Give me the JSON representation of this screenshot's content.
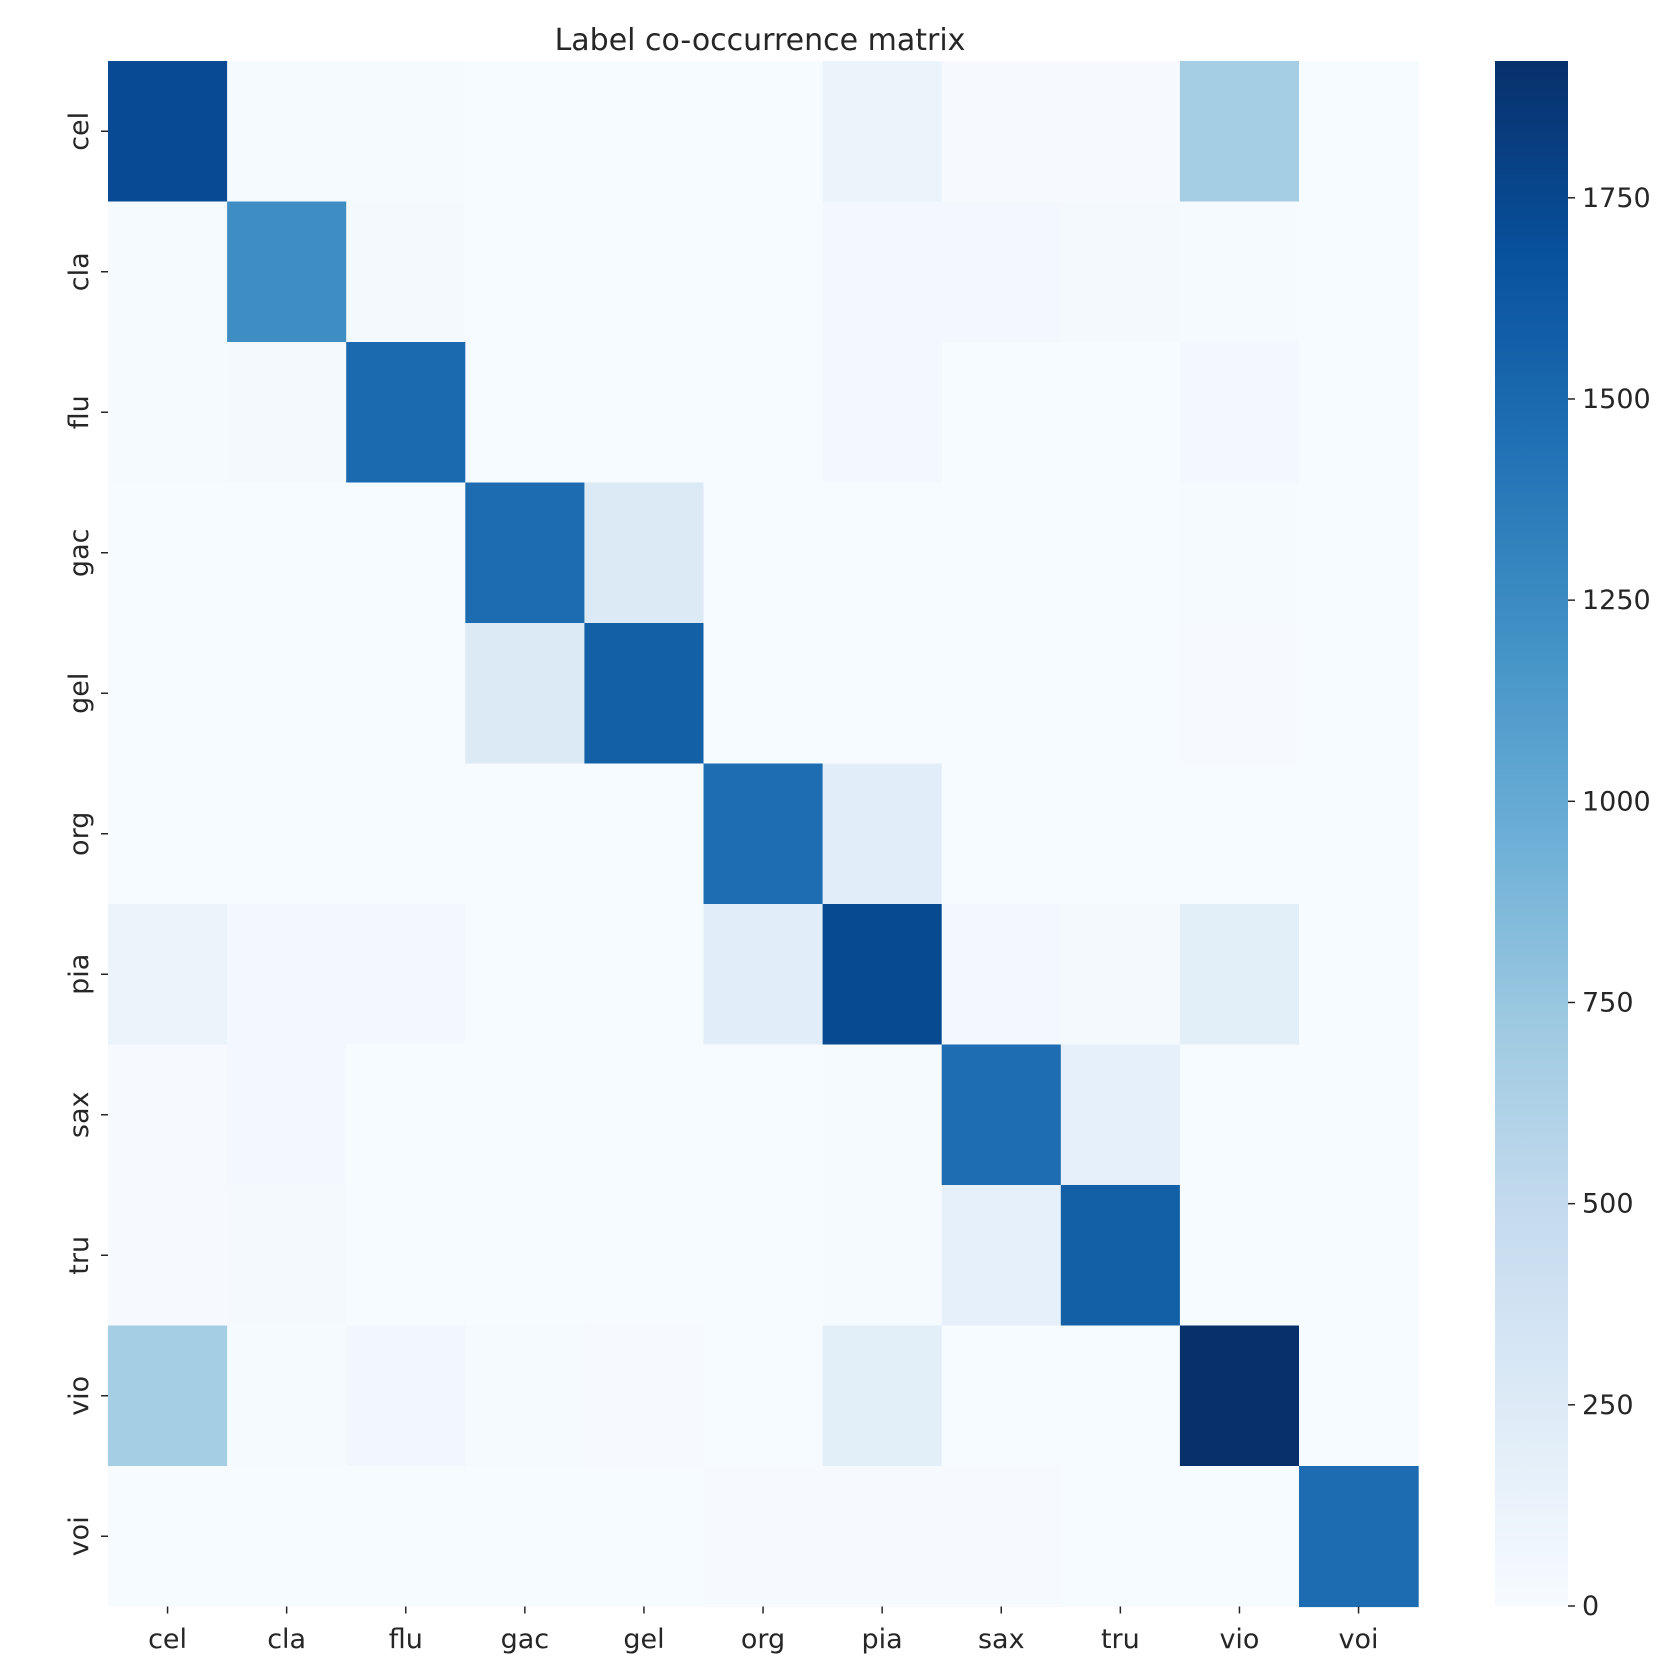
{
  "chart_data": {
    "type": "heatmap",
    "title": "Label co-occurrence matrix",
    "xlabel": "",
    "ylabel": "",
    "x_categories": [
      "cel",
      "cla",
      "flu",
      "gac",
      "gel",
      "org",
      "pia",
      "sax",
      "tru",
      "vio",
      "voi"
    ],
    "y_categories": [
      "cel",
      "cla",
      "flu",
      "gac",
      "gel",
      "org",
      "pia",
      "sax",
      "tru",
      "vio",
      "voi"
    ],
    "values": [
      [
        1720,
        15,
        20,
        5,
        5,
        5,
        120,
        10,
        10,
        680,
        5
      ],
      [
        15,
        1230,
        30,
        5,
        5,
        5,
        50,
        40,
        30,
        20,
        5
      ],
      [
        20,
        30,
        1500,
        5,
        5,
        5,
        40,
        5,
        5,
        40,
        5
      ],
      [
        5,
        5,
        5,
        1480,
        260,
        5,
        5,
        5,
        5,
        20,
        5
      ],
      [
        5,
        5,
        5,
        260,
        1570,
        5,
        5,
        5,
        5,
        10,
        5
      ],
      [
        5,
        5,
        5,
        5,
        5,
        1470,
        210,
        5,
        5,
        5,
        5
      ],
      [
        120,
        50,
        40,
        5,
        5,
        210,
        1730,
        50,
        30,
        200,
        5
      ],
      [
        10,
        40,
        5,
        5,
        5,
        5,
        20,
        1470,
        160,
        5,
        5
      ],
      [
        10,
        30,
        5,
        5,
        5,
        5,
        20,
        160,
        1570,
        5,
        5
      ],
      [
        680,
        20,
        60,
        20,
        10,
        5,
        200,
        5,
        5,
        1920,
        5
      ],
      [
        5,
        5,
        5,
        5,
        5,
        10,
        10,
        10,
        5,
        5,
        1480
      ]
    ],
    "colorscale": "Blues",
    "color_range": [
      0,
      1920
    ],
    "colorbar_ticks": [
      "0",
      "250",
      "500",
      "750",
      "1000",
      "1250",
      "1500",
      "1750"
    ],
    "colorbar_tick_values": [
      0,
      250,
      500,
      750,
      1000,
      1250,
      1500,
      1750
    ],
    "grid": false,
    "legend": "colorbar-right"
  }
}
